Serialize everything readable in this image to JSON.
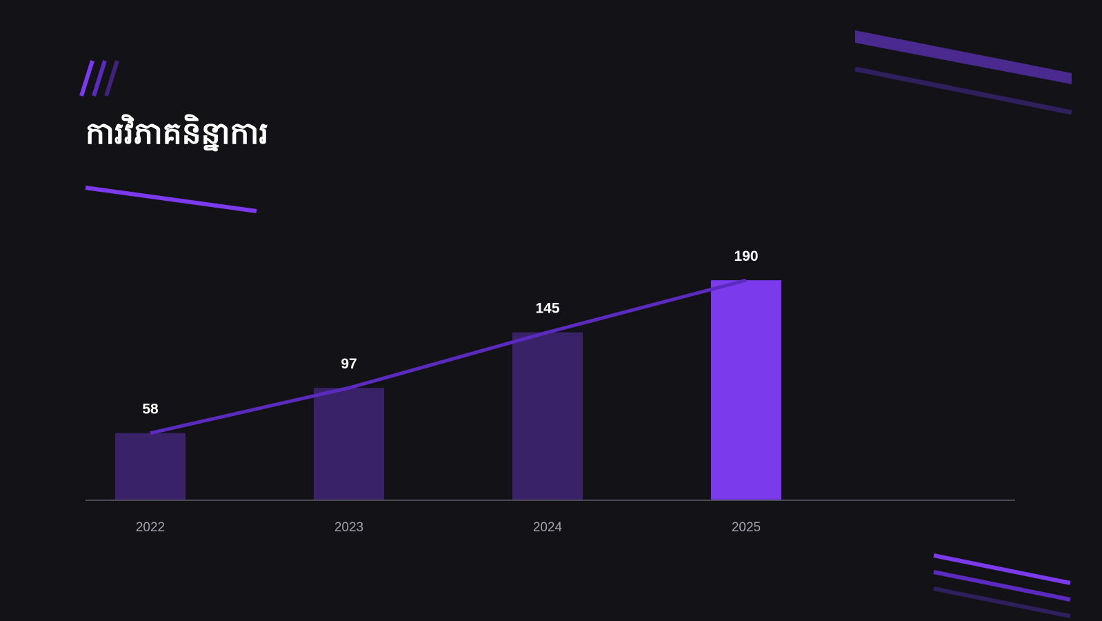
{
  "slide": {
    "title": "ការវិភាគនិន្នាការ"
  },
  "colors": {
    "background": "#121217",
    "accent": "#7c3aed",
    "bar_muted": "#3a2268",
    "trend_line": "#5b2bbf",
    "axis": "#4a4a55",
    "text": "#ffffff",
    "tick_text": "#a3a3ad"
  },
  "chart_data": {
    "type": "bar",
    "categories": [
      "2022",
      "2023",
      "2024",
      "2025"
    ],
    "values": [
      58,
      97,
      145,
      190
    ],
    "value_labels": [
      "58",
      "97",
      "145",
      "190"
    ],
    "highlight_index": 3,
    "trend_line": true,
    "ylim": [
      0,
      230
    ],
    "grid": false,
    "legend": "none",
    "title": "",
    "xlabel": "",
    "ylabel": ""
  }
}
